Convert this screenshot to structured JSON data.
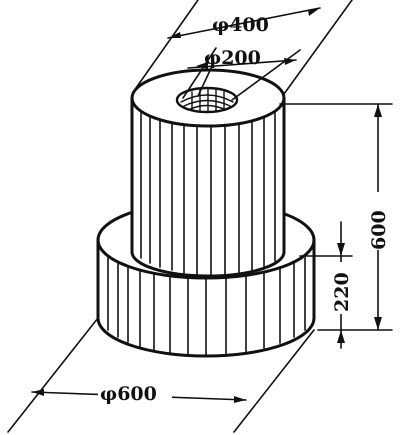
{
  "dimensions": {
    "top_outer_diameter": "φ400",
    "top_inner_diameter": "φ200",
    "total_height": "600",
    "base_height": "220",
    "base_diameter": "φ600"
  },
  "colors": {
    "ink": "#111111",
    "background": "#ffffff"
  }
}
